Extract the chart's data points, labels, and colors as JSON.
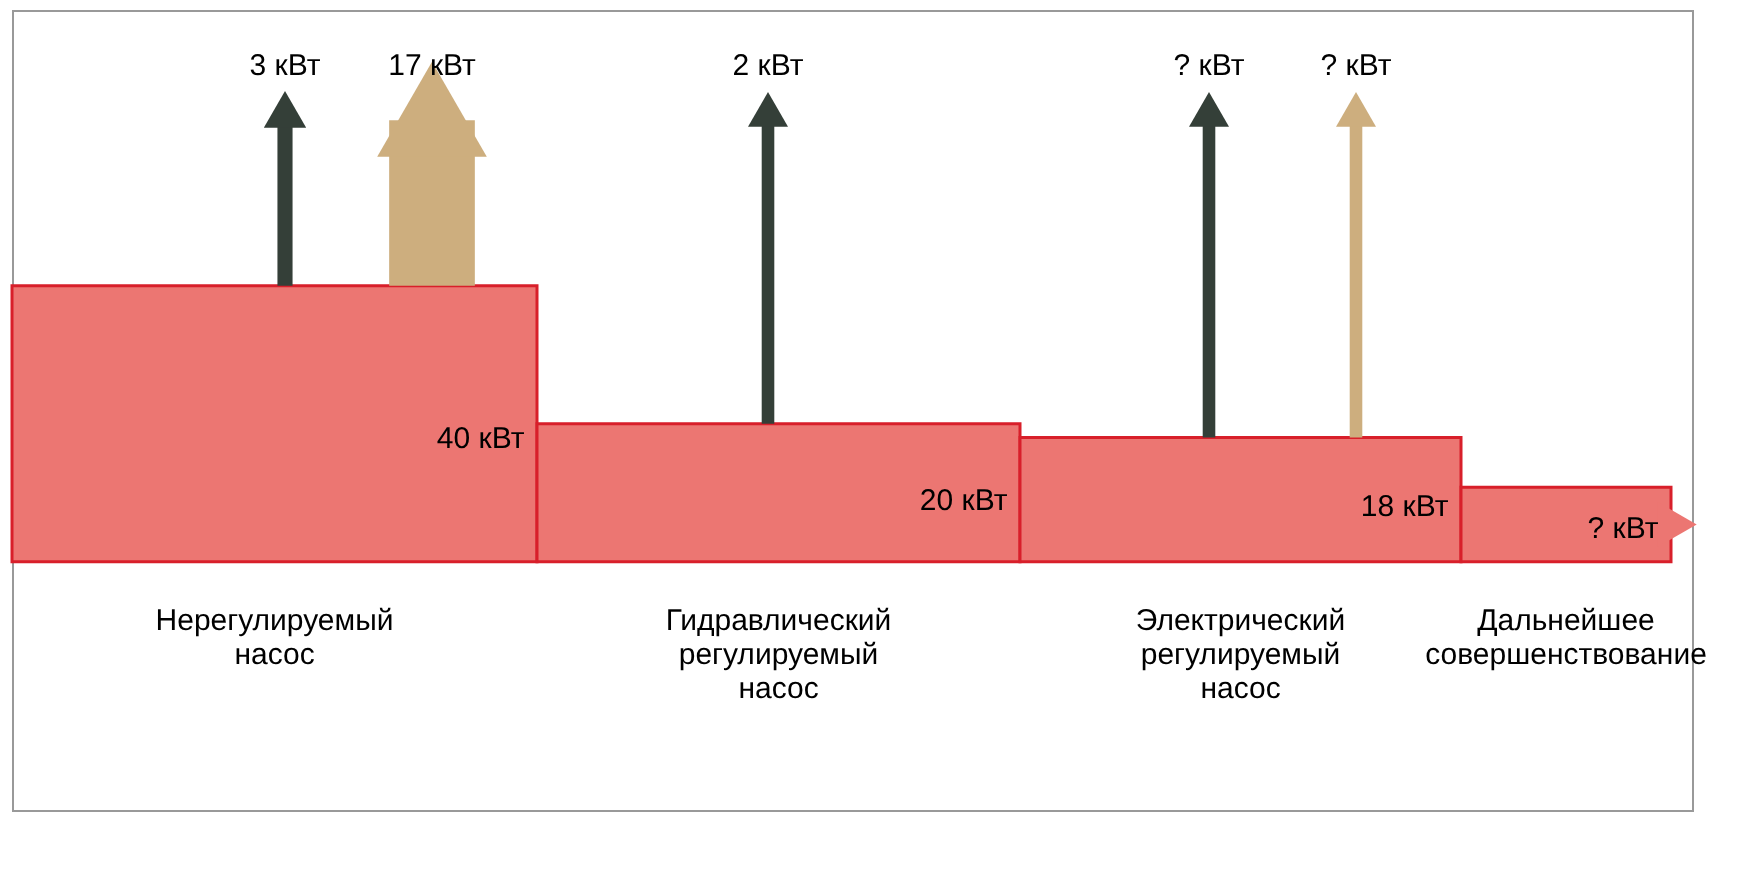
{
  "chart_data": {
    "type": "other",
    "categories": [
      "Нерегулируемый\nнасос",
      "Гидравлический\nрегулируемый\nнасос",
      "Электрический\nрегулируемый\nнасос",
      "Дальнейшее\nсовершенствование"
    ],
    "values": [
      40,
      20,
      18,
      null
    ],
    "value_labels": [
      "40 кВт",
      "20 кВт",
      "18 кВт",
      "? кВт"
    ],
    "color": "#ec7672",
    "series": [
      {
        "color": "#343f38",
        "values": [
          3,
          2,
          null,
          null
        ],
        "value_labels": [
          "3 кВт",
          "2 кВт",
          "? кВт",
          null
        ]
      },
      {
        "color": "#cdae7e",
        "values": [
          17,
          null,
          null,
          null
        ],
        "value_labels": [
          "17 кВт",
          null,
          "? кВт",
          null
        ]
      }
    ]
  }
}
